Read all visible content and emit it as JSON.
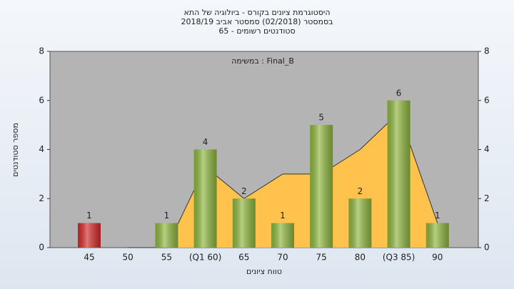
{
  "chart_data": {
    "type": "bar",
    "title": [
      "היסטוגרמת ציונים בקורס - ביולוגיה של התא",
      "בסמסטר (02/2018) סמסטר אביב 2018/19",
      "סטודנטים רשומים - 65"
    ],
    "annotation": "במשימה : Final_B",
    "x_label": "טווח ציונים",
    "y_label": "מספר סטודנטים",
    "categories": [
      "45",
      "50",
      "55",
      "(Q1 60)",
      "65",
      "70",
      "75",
      "80",
      "(Q3 85)",
      "90"
    ],
    "values": [
      1,
      0,
      1,
      4,
      2,
      1,
      5,
      2,
      6,
      1
    ],
    "value_labels": [
      "1",
      null,
      "1",
      "4",
      "2",
      "1",
      "5",
      "2",
      "6",
      "1"
    ],
    "colors": [
      "#d42a2a",
      "#8fb73e",
      "#8fb73e",
      "#8fb73e",
      "#8fb73e",
      "#8fb73e",
      "#8fb73e",
      "#8fb73e",
      "#8fb73e",
      "#8fb73e"
    ],
    "area_values": [
      null,
      0,
      0,
      3.3,
      2,
      3,
      3,
      4,
      5.5,
      1
    ],
    "area_color": "#ffc34d",
    "ylim": [
      0,
      8
    ],
    "yticks": [
      0,
      2,
      4,
      6,
      8
    ],
    "y2lim": [
      0,
      8
    ],
    "y2ticks": [
      0,
      2,
      4,
      6,
      8
    ]
  }
}
